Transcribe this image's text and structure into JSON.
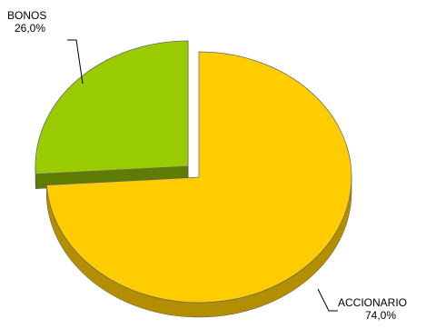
{
  "chart_data": {
    "type": "pie",
    "title": "",
    "slices": [
      {
        "label": "ACCIONARIO",
        "value": 74.0,
        "value_label": "74,0%",
        "color": "#ffcc00",
        "side_color": "#b38f00",
        "exploded": false
      },
      {
        "label": "BONOS",
        "value": 26.0,
        "value_label": "26,0%",
        "color": "#99cc00",
        "side_color": "#5e7d00",
        "exploded": true
      }
    ],
    "style": "3d-pie",
    "legend": "none"
  }
}
